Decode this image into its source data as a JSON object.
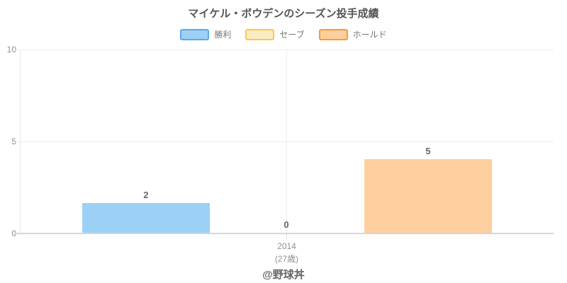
{
  "page": {
    "footer": "@野球丼"
  },
  "chart_data": {
    "type": "bar",
    "title": "マイケル・ボウデンのシーズン投手成績",
    "categories": [
      "2014"
    ],
    "category_sublabels": [
      "(27歳)"
    ],
    "series": [
      {
        "name": "勝利",
        "values": [
          2
        ],
        "fill": "#9CD0F5",
        "border": "#5AAAE8"
      },
      {
        "name": "セーブ",
        "values": [
          0
        ],
        "fill": "#FBEBC3",
        "border": "#FFC646"
      },
      {
        "name": "ホールド",
        "values": [
          5
        ],
        "fill": "#FDCF9E",
        "border": "#F89B37"
      }
    ],
    "ylim": [
      0,
      10
    ],
    "yticks": [
      0,
      5,
      10
    ],
    "grid": "horizontal",
    "legend_position": "top",
    "value_labels": true,
    "bar_render_scale": 0.8
  }
}
